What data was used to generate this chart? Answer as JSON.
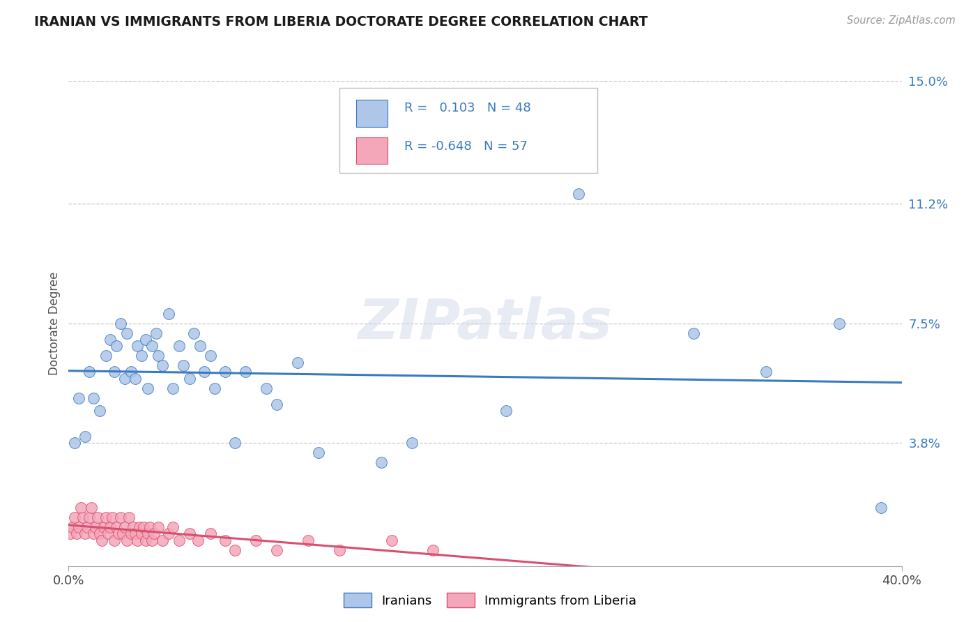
{
  "title": "IRANIAN VS IMMIGRANTS FROM LIBERIA DOCTORATE DEGREE CORRELATION CHART",
  "source_text": "Source: ZipAtlas.com",
  "ylabel": "Doctorate Degree",
  "xlim": [
    0.0,
    0.4
  ],
  "ylim": [
    0.0,
    0.15
  ],
  "ytick_positions": [
    0.038,
    0.075,
    0.112,
    0.15
  ],
  "ytick_labels": [
    "3.8%",
    "7.5%",
    "11.2%",
    "15.0%"
  ],
  "grid_color": "#c8c8c8",
  "background_color": "#ffffff",
  "iranian_color": "#aec6e8",
  "liberia_color": "#f4a7b9",
  "iranian_line_color": "#3a7bbf",
  "liberia_line_color": "#d94f70",
  "r_iranian": 0.103,
  "n_iranian": 48,
  "r_liberia": -0.648,
  "n_liberia": 57,
  "legend_label_iranian": "Iranians",
  "legend_label_liberia": "Immigrants from Liberia",
  "watermark": "ZIPatlas",
  "iranian_scatter_x": [
    0.003,
    0.005,
    0.008,
    0.01,
    0.012,
    0.015,
    0.018,
    0.02,
    0.022,
    0.023,
    0.025,
    0.027,
    0.028,
    0.03,
    0.032,
    0.033,
    0.035,
    0.037,
    0.038,
    0.04,
    0.042,
    0.043,
    0.045,
    0.048,
    0.05,
    0.053,
    0.055,
    0.058,
    0.06,
    0.063,
    0.065,
    0.068,
    0.07,
    0.075,
    0.08,
    0.085,
    0.095,
    0.1,
    0.11,
    0.12,
    0.15,
    0.165,
    0.21,
    0.245,
    0.3,
    0.335,
    0.37,
    0.39
  ],
  "iranian_scatter_y": [
    0.038,
    0.052,
    0.04,
    0.06,
    0.052,
    0.048,
    0.065,
    0.07,
    0.06,
    0.068,
    0.075,
    0.058,
    0.072,
    0.06,
    0.058,
    0.068,
    0.065,
    0.07,
    0.055,
    0.068,
    0.072,
    0.065,
    0.062,
    0.078,
    0.055,
    0.068,
    0.062,
    0.058,
    0.072,
    0.068,
    0.06,
    0.065,
    0.055,
    0.06,
    0.038,
    0.06,
    0.055,
    0.05,
    0.063,
    0.035,
    0.032,
    0.038,
    0.048,
    0.115,
    0.072,
    0.06,
    0.075,
    0.018
  ],
  "liberia_scatter_x": [
    0.001,
    0.002,
    0.003,
    0.004,
    0.005,
    0.006,
    0.007,
    0.008,
    0.009,
    0.01,
    0.011,
    0.012,
    0.013,
    0.014,
    0.015,
    0.016,
    0.017,
    0.018,
    0.019,
    0.02,
    0.021,
    0.022,
    0.023,
    0.024,
    0.025,
    0.026,
    0.027,
    0.028,
    0.029,
    0.03,
    0.031,
    0.032,
    0.033,
    0.034,
    0.035,
    0.036,
    0.037,
    0.038,
    0.039,
    0.04,
    0.041,
    0.043,
    0.045,
    0.048,
    0.05,
    0.053,
    0.058,
    0.062,
    0.068,
    0.075,
    0.08,
    0.09,
    0.1,
    0.115,
    0.13,
    0.155,
    0.175
  ],
  "liberia_scatter_y": [
    0.01,
    0.012,
    0.015,
    0.01,
    0.012,
    0.018,
    0.015,
    0.01,
    0.012,
    0.015,
    0.018,
    0.01,
    0.012,
    0.015,
    0.01,
    0.008,
    0.012,
    0.015,
    0.01,
    0.012,
    0.015,
    0.008,
    0.012,
    0.01,
    0.015,
    0.01,
    0.012,
    0.008,
    0.015,
    0.01,
    0.012,
    0.01,
    0.008,
    0.012,
    0.01,
    0.012,
    0.008,
    0.01,
    0.012,
    0.008,
    0.01,
    0.012,
    0.008,
    0.01,
    0.012,
    0.008,
    0.01,
    0.008,
    0.01,
    0.008,
    0.005,
    0.008,
    0.005,
    0.008,
    0.005,
    0.008,
    0.005
  ]
}
